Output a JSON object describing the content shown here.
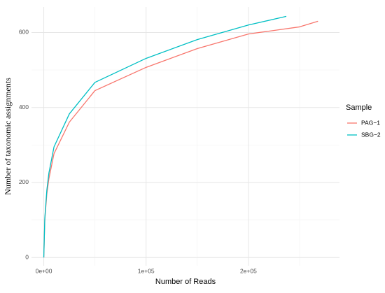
{
  "chart_data": {
    "type": "line",
    "x_label": "Number of Reads",
    "y_label": "Number of taxonomic assignments",
    "legend_title": "Sample",
    "legend_position": "right",
    "series": [
      {
        "name": "PAG−1",
        "color": "#F8766D",
        "x": [
          0,
          1000,
          3000,
          5000,
          10000,
          25000,
          50000,
          100000,
          150000,
          200000,
          250000,
          268000
        ],
        "values": [
          0,
          100,
          170,
          210,
          277,
          361,
          445,
          507,
          557,
          596,
          615,
          630
        ]
      },
      {
        "name": "SBG−2",
        "color": "#00BFC4",
        "x": [
          0,
          1000,
          3000,
          5000,
          10000,
          25000,
          50000,
          100000,
          150000,
          200000,
          237000
        ],
        "values": [
          0,
          105,
          180,
          225,
          295,
          383,
          467,
          531,
          581,
          620,
          643
        ]
      }
    ],
    "xlim": [
      -12000,
      289000
    ],
    "ylim": [
      -22,
      668
    ],
    "xticks": [
      {
        "value": 0,
        "label": "0e+00"
      },
      {
        "value": 100000,
        "label": "1e+05"
      },
      {
        "value": 200000,
        "label": "2e+05"
      }
    ],
    "yticks": [
      0,
      200,
      400,
      600
    ],
    "x_minor": [
      50000,
      150000,
      250000
    ],
    "y_minor": [
      100,
      300,
      500
    ],
    "grid": true
  }
}
